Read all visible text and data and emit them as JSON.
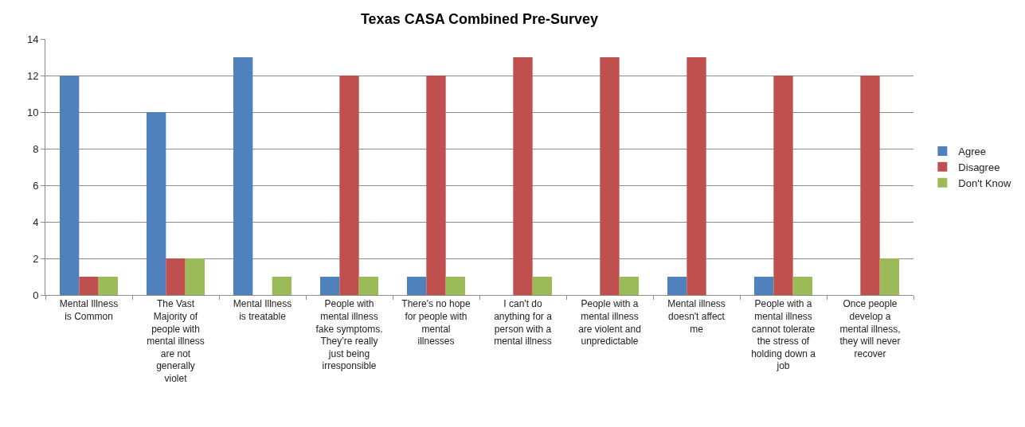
{
  "chart_data": {
    "type": "bar",
    "title": "Texas CASA Combined Pre-Survey",
    "categories": [
      "Mental Illness is Common",
      "The Vast Majority of people with mental illness are not generally violet",
      "Mental Illness is treatable",
      "People with mental illness fake symptoms. They’re really just being irresponsible",
      "There's no hope for people with mental illnesses",
      "I can't do anything for a person with a mental illness",
      "People with a mental illness are violent and unpredictable",
      "Mental illness doesn't affect me",
      "People with a mental illness cannot tolerate the stress of holding down a job",
      "Once people develop a mental illness, they will never recover"
    ],
    "series": [
      {
        "name": "Agree",
        "color": "#4f81bd",
        "values": [
          12,
          10,
          13,
          1,
          1,
          0,
          0,
          1,
          1,
          0
        ]
      },
      {
        "name": "Disagree",
        "color": "#c0504d",
        "values": [
          1,
          2,
          0,
          12,
          12,
          13,
          13,
          13,
          12,
          12
        ]
      },
      {
        "name": "Don't Know",
        "color": "#9bbb59",
        "values": [
          1,
          2,
          1,
          1,
          1,
          1,
          1,
          0,
          1,
          2
        ]
      }
    ],
    "ylim": [
      0,
      14
    ],
    "yticks": [
      0,
      2,
      4,
      6,
      8,
      10,
      12,
      14
    ],
    "grid": "y",
    "legend": "right"
  }
}
